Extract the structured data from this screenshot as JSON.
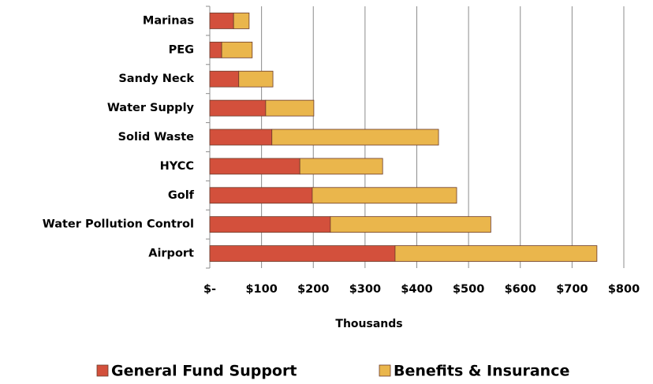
{
  "chart_data": {
    "type": "stacked-barh",
    "categories": [
      "Marinas",
      "PEG",
      "Sandy Neck",
      "Water Supply",
      "Solid Waste",
      "HYCC",
      "Golf",
      "Water Pollution Control",
      "Airport"
    ],
    "series": [
      {
        "name": "General Fund Support",
        "color": "#d3503c",
        "values": [
          46,
          23,
          56,
          108,
          120,
          174,
          198,
          233,
          358
        ]
      },
      {
        "name": "Benefits & Insurance",
        "color": "#eab64c",
        "values": [
          30,
          59,
          66,
          93,
          322,
          160,
          279,
          310,
          390
        ]
      }
    ],
    "xlabel": "Thousands",
    "xlim": [
      0,
      800
    ],
    "xticks": [
      {
        "value": 0,
        "label": "$-"
      },
      {
        "value": 100,
        "label": "$100"
      },
      {
        "value": 200,
        "label": "$200"
      },
      {
        "value": 300,
        "label": "$300"
      },
      {
        "value": 400,
        "label": "$400"
      },
      {
        "value": 500,
        "label": "$500"
      },
      {
        "value": 600,
        "label": "$600"
      },
      {
        "value": 700,
        "label": "$700"
      },
      {
        "value": 800,
        "label": "$800"
      }
    ],
    "grid": true,
    "legend": "bottom"
  }
}
